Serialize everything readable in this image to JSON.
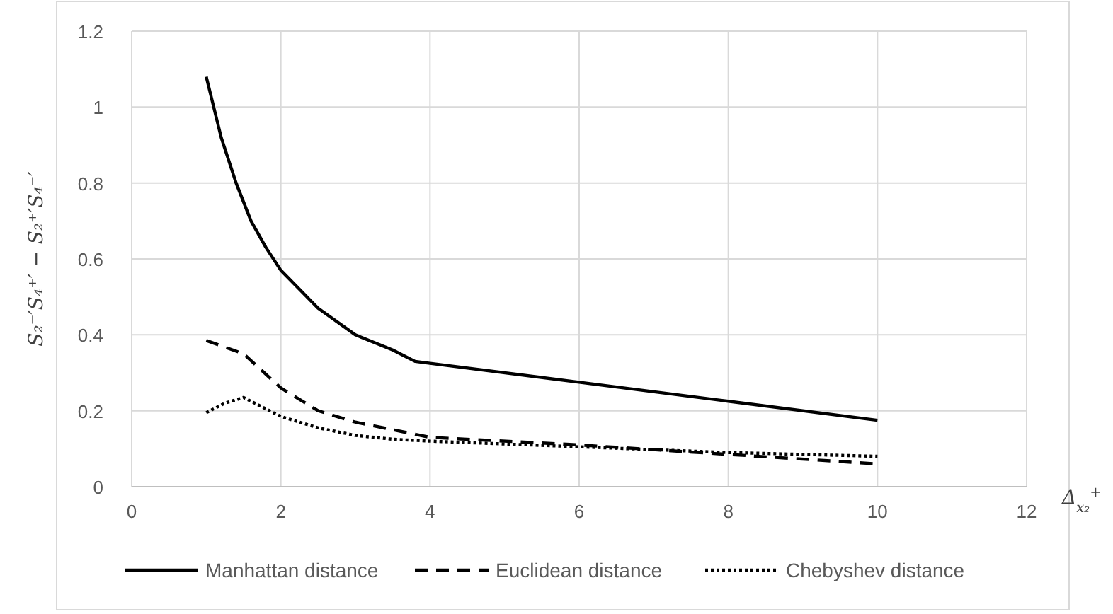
{
  "chart_data": {
    "type": "line",
    "xlabel": "Δ$_{x₂}$$^{+}$",
    "ylabel": "S₂⁻′S₄⁺′ − S₂⁺′S₄⁻′",
    "xlim": [
      0,
      12
    ],
    "xticks": [
      0,
      2,
      4,
      6,
      8,
      10,
      12
    ],
    "ylim": [
      0,
      1.2
    ],
    "yticks": [
      0,
      0.2,
      0.4,
      0.6,
      0.8,
      1,
      1.2
    ],
    "grid": true,
    "legend": "bottom",
    "series": [
      {
        "name": "Manhattan distance",
        "color": "#000000",
        "line_style": "solid",
        "x": [
          1,
          1.2,
          1.4,
          1.6,
          1.8,
          2,
          2.5,
          3,
          3.5,
          3.8,
          4,
          6,
          8,
          10
        ],
        "values": [
          1.08,
          0.92,
          0.8,
          0.7,
          0.63,
          0.57,
          0.47,
          0.4,
          0.36,
          0.33,
          0.325,
          0.275,
          0.225,
          0.175
        ]
      },
      {
        "name": "Euclidean distance",
        "color": "#000000",
        "line_style": "dashed",
        "x": [
          1,
          1.5,
          2,
          2.5,
          3,
          3.5,
          4,
          6,
          8,
          10
        ],
        "values": [
          0.385,
          0.35,
          0.26,
          0.2,
          0.17,
          0.15,
          0.13,
          0.11,
          0.085,
          0.06
        ]
      },
      {
        "name": "Chebyshev distance",
        "color": "#000000",
        "line_style": "dotted",
        "x": [
          1,
          1.25,
          1.5,
          1.75,
          2,
          2.5,
          3,
          3.5,
          4,
          6,
          8,
          10
        ],
        "values": [
          0.195,
          0.22,
          0.235,
          0.21,
          0.185,
          0.155,
          0.135,
          0.125,
          0.12,
          0.105,
          0.09,
          0.08
        ]
      }
    ]
  }
}
